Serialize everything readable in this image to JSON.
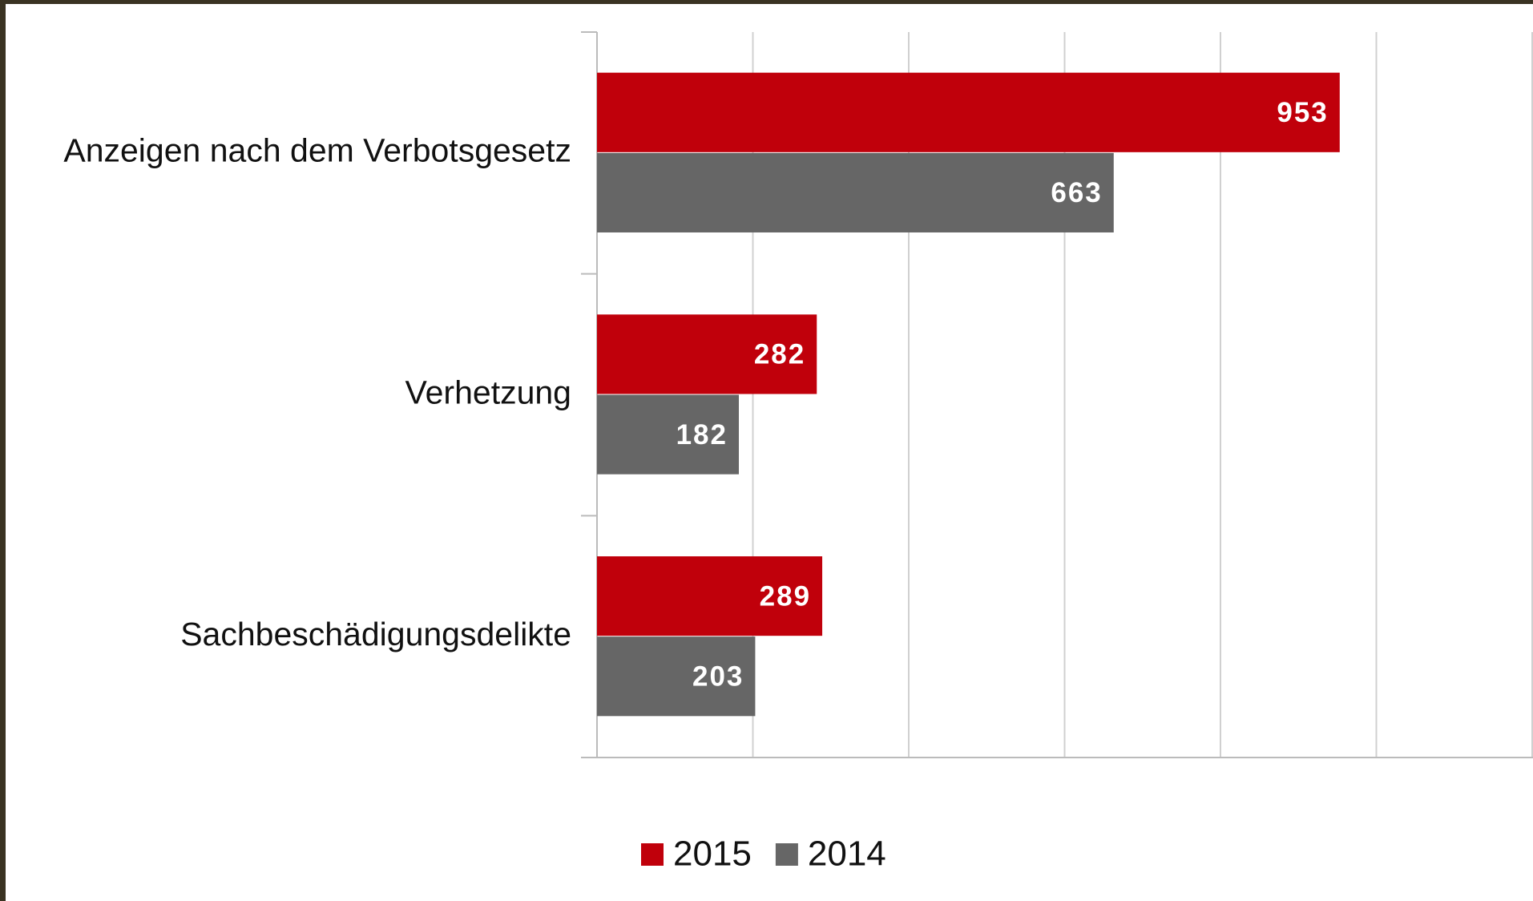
{
  "chart_data": {
    "type": "bar",
    "orientation": "horizontal",
    "categories": [
      "Anzeigen nach dem Verbotsgesetz",
      "Verhetzung",
      "Sachbeschädigungsdelikte"
    ],
    "series": [
      {
        "name": "2015",
        "color": "#c0000b",
        "values": [
          953,
          282,
          289
        ]
      },
      {
        "name": "2014",
        "color": "#666666",
        "values": [
          663,
          182,
          203
        ]
      }
    ],
    "xlim": [
      0,
      1200
    ],
    "xticks": [
      0,
      200,
      400,
      600,
      800,
      1000,
      1200
    ],
    "grid": true,
    "legend": "bottom"
  }
}
